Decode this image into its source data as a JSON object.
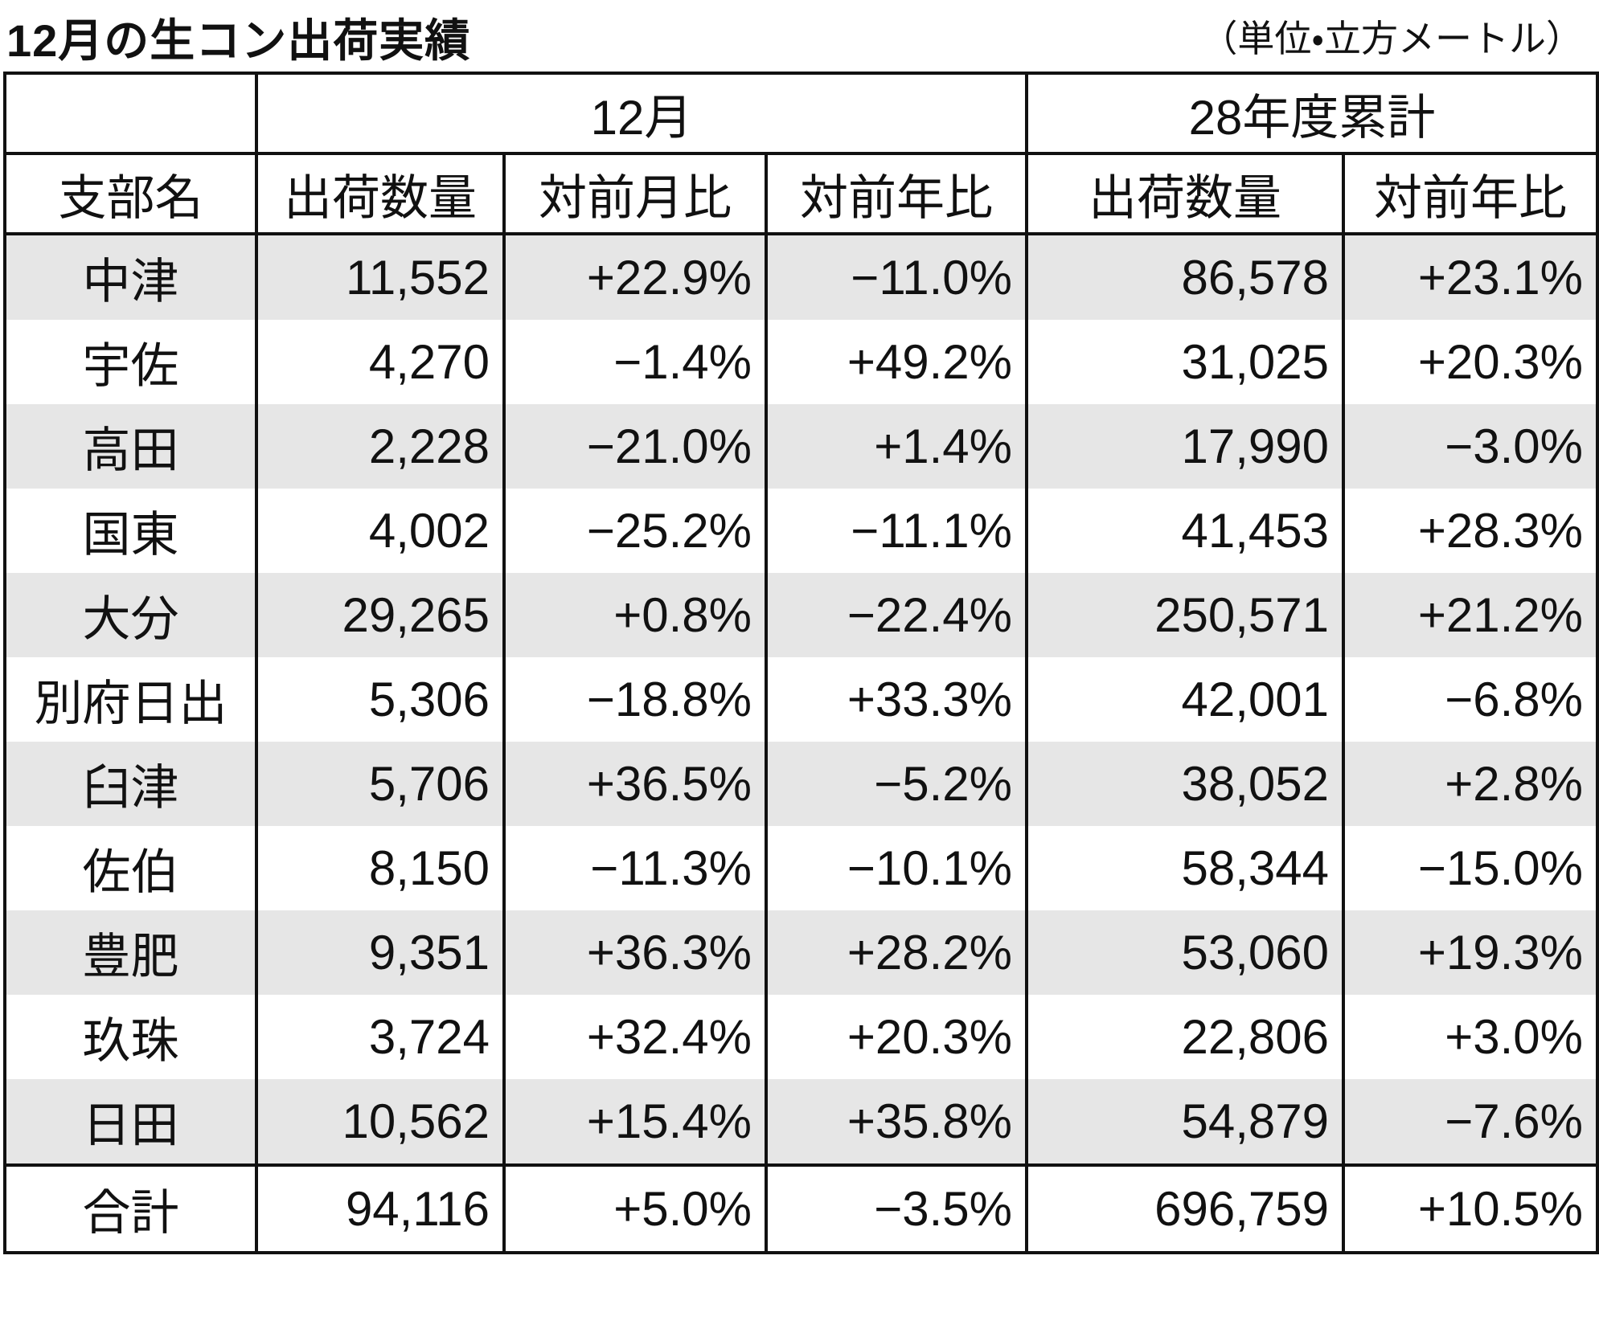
{
  "header": {
    "title": "12月の生コン出荷実績",
    "unit": "（単位・立方メートル）"
  },
  "table": {
    "group_headers": [
      "12月",
      "28年度累計"
    ],
    "columns": [
      "支部名",
      "出荷数量",
      "対前月比",
      "対前年比",
      "出荷数量",
      "対前年比"
    ],
    "rows": [
      [
        "中津",
        "11,552",
        "+22.9%",
        "−11.0%",
        "86,578",
        "+23.1%"
      ],
      [
        "宇佐",
        "4,270",
        "−1.4%",
        "+49.2%",
        "31,025",
        "+20.3%"
      ],
      [
        "高田",
        "2,228",
        "−21.0%",
        "+1.4%",
        "17,990",
        "−3.0%"
      ],
      [
        "国東",
        "4,002",
        "−25.2%",
        "−11.1%",
        "41,453",
        "+28.3%"
      ],
      [
        "大分",
        "29,265",
        "+0.8%",
        "−22.4%",
        "250,571",
        "+21.2%"
      ],
      [
        "別府日出",
        "5,306",
        "−18.8%",
        "+33.3%",
        "42,001",
        "−6.8%"
      ],
      [
        "臼津",
        "5,706",
        "+36.5%",
        "−5.2%",
        "38,052",
        "+2.8%"
      ],
      [
        "佐伯",
        "8,150",
        "−11.3%",
        "−10.1%",
        "58,344",
        "−15.0%"
      ],
      [
        "豊肥",
        "9,351",
        "+36.3%",
        "+28.2%",
        "53,060",
        "+19.3%"
      ],
      [
        "玖珠",
        "3,724",
        "+32.4%",
        "+20.3%",
        "22,806",
        "+3.0%"
      ],
      [
        "日田",
        "10,562",
        "+15.4%",
        "+35.8%",
        "54,879",
        "−7.6%"
      ]
    ],
    "total": [
      "合計",
      "94,116",
      "+5.0%",
      "−3.5%",
      "696,759",
      "+10.5%"
    ]
  }
}
